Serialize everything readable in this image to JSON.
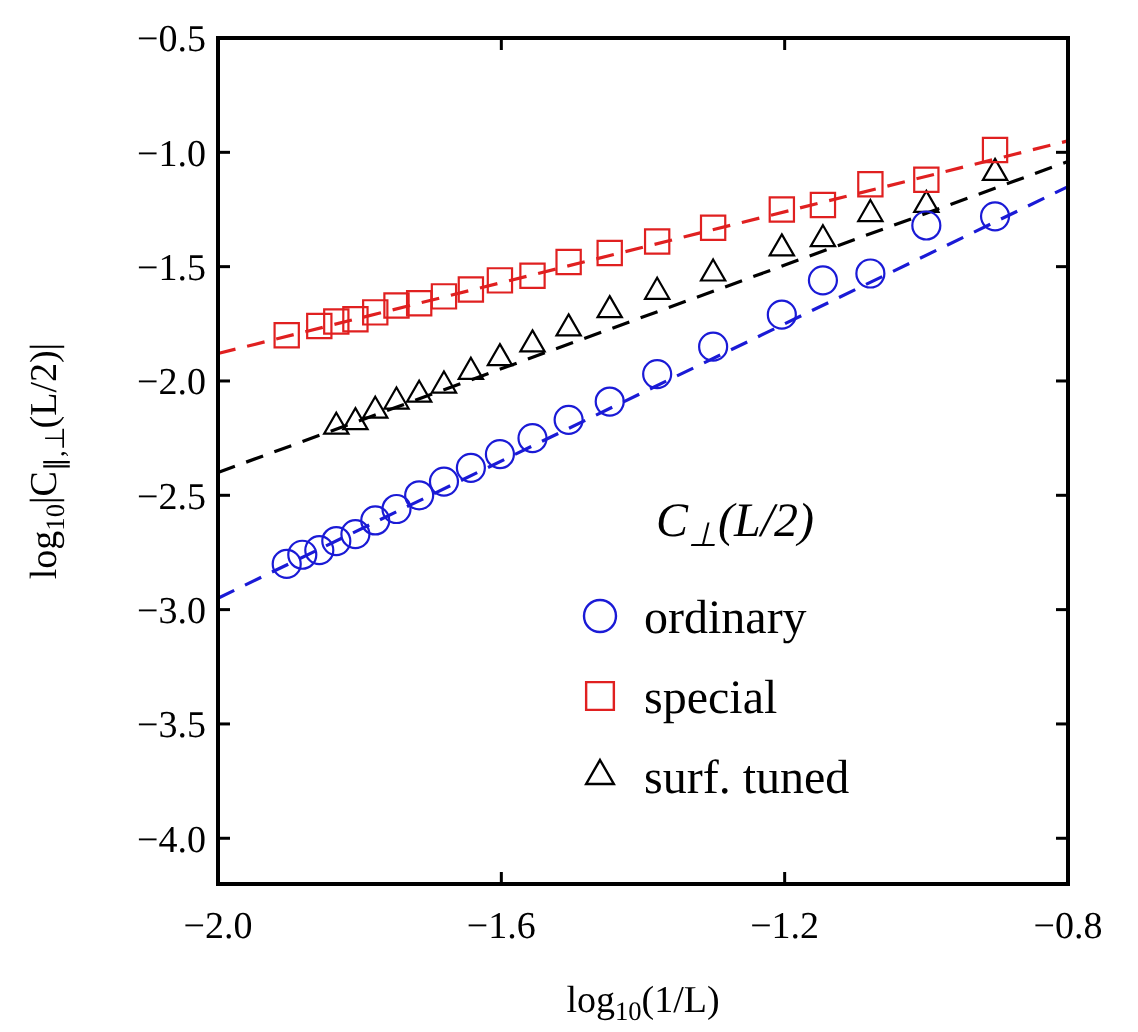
{
  "chart_data": {
    "type": "scatter",
    "xlabel": "log$_{10}$(1/L)",
    "ylabel": "log$_{10}$|C$_{∥,⊥}$(L/2)|",
    "legend_title": "C$_{⊥}$(L/2)",
    "legend": "bottom right",
    "grid": false,
    "xlim": [
      -2.0,
      -0.8
    ],
    "xticks": [
      {
        "value": -2.0,
        "label": "−2.0"
      },
      {
        "value": -1.6,
        "label": "−1.6"
      },
      {
        "value": -1.2,
        "label": "−1.2"
      },
      {
        "value": -0.8,
        "label": "−0.8"
      }
    ],
    "ylim": [
      -4.2,
      -0.5
    ],
    "yticks": [
      {
        "value": -4.0,
        "label": "−4.0"
      },
      {
        "value": -3.5,
        "label": "−3.5"
      },
      {
        "value": -3.0,
        "label": "−3.0"
      },
      {
        "value": -2.5,
        "label": "−2.5"
      },
      {
        "value": -2.0,
        "label": "−2.0"
      },
      {
        "value": -1.5,
        "label": "−1.5"
      },
      {
        "value": -1.0,
        "label": "−1.0"
      },
      {
        "value": -0.5,
        "label": "−0.5"
      }
    ],
    "series": [
      {
        "name": "ordinary",
        "marker": "circle",
        "color": "#1a1ad6",
        "x": [
          -1.903,
          -1.881,
          -1.857,
          -1.833,
          -1.806,
          -1.778,
          -1.748,
          -1.716,
          -1.681,
          -1.643,
          -1.602,
          -1.556,
          -1.505,
          -1.447,
          -1.38,
          -1.301,
          -1.204,
          -1.146,
          -1.079,
          -1.0,
          -0.903
        ],
        "values": [
          -2.8,
          -2.76,
          -2.74,
          -2.7,
          -2.67,
          -2.61,
          -2.56,
          -2.5,
          -2.44,
          -2.38,
          -2.32,
          -2.25,
          -2.17,
          -2.09,
          -1.97,
          -1.85,
          -1.71,
          -1.56,
          -1.53,
          -1.32,
          -1.28
        ]
      },
      {
        "name": "special",
        "marker": "square",
        "color": "#e02020",
        "x": [
          -1.903,
          -1.857,
          -1.833,
          -1.806,
          -1.778,
          -1.748,
          -1.716,
          -1.681,
          -1.643,
          -1.602,
          -1.556,
          -1.505,
          -1.447,
          -1.38,
          -1.301,
          -1.204,
          -1.146,
          -1.079,
          -1.0,
          -0.903
        ],
        "values": [
          -1.8,
          -1.76,
          -1.74,
          -1.73,
          -1.7,
          -1.67,
          -1.66,
          -1.63,
          -1.6,
          -1.56,
          -1.54,
          -1.48,
          -1.44,
          -1.39,
          -1.33,
          -1.25,
          -1.23,
          -1.14,
          -1.12,
          -0.99
        ]
      },
      {
        "name": "surf. tuned",
        "marker": "triangle",
        "color": "#000000",
        "x": [
          -1.833,
          -1.806,
          -1.778,
          -1.748,
          -1.716,
          -1.681,
          -1.643,
          -1.602,
          -1.556,
          -1.505,
          -1.447,
          -1.38,
          -1.301,
          -1.204,
          -1.146,
          -1.079,
          -1.0,
          -0.903
        ],
        "values": [
          -2.2,
          -2.18,
          -2.13,
          -2.09,
          -2.06,
          -2.02,
          -1.96,
          -1.9,
          -1.84,
          -1.77,
          -1.69,
          -1.61,
          -1.53,
          -1.42,
          -1.38,
          -1.27,
          -1.23,
          -1.09
        ]
      },
      {
        "type": "line",
        "line_style": "dashed",
        "color": "#1a1ad6",
        "x": [
          -2.0,
          -0.8
        ],
        "values": [
          -2.95,
          -1.15
        ]
      },
      {
        "type": "line",
        "line_style": "dashed",
        "color": "#e02020",
        "x": [
          -2.0,
          -0.8
        ],
        "values": [
          -1.88,
          -0.95
        ]
      },
      {
        "type": "line",
        "line_style": "dashed",
        "color": "#000000",
        "x": [
          -2.0,
          -0.8
        ],
        "values": [
          -2.4,
          -1.04
        ]
      }
    ]
  }
}
